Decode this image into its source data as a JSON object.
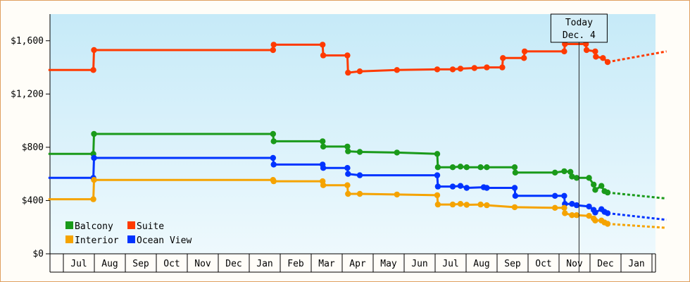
{
  "chart_data": {
    "type": "line",
    "title": "",
    "xlabel": "",
    "ylabel": "",
    "ylim": [
      0,
      1800
    ],
    "yticks": [
      0,
      400,
      800,
      1200,
      1600
    ],
    "ytick_labels": [
      "$0",
      "$400",
      "$800",
      "$1,200",
      "$1,600"
    ],
    "month_labels": [
      "Jul",
      "Aug",
      "Sep",
      "Oct",
      "Nov",
      "Dec",
      "Jan",
      "Feb",
      "Mar",
      "Apr",
      "May",
      "Jun",
      "Jul",
      "Aug",
      "Sep",
      "Oct",
      "Nov",
      "Dec",
      "Jan"
    ],
    "x_start_month": 0,
    "x_end_month": 19.9,
    "today": {
      "label_line1": "Today",
      "label_line2": "Dec. 4",
      "x": 17.1
    },
    "grid": "none",
    "background": "gradient light-blue",
    "legend": {
      "placement": "bottom-left",
      "entries": [
        {
          "name": "Balcony",
          "color": "#1a9a1a"
        },
        {
          "name": "Suite",
          "color": "#ff3a00"
        },
        {
          "name": "Interior",
          "color": "#f5a300"
        },
        {
          "name": "Ocean View",
          "color": "#0033ff"
        }
      ]
    },
    "series": [
      {
        "name": "Suite",
        "color": "#ff3a00",
        "points": [
          [
            -0.05,
            1380
          ],
          [
            1.4,
            1380
          ],
          [
            1.42,
            1530
          ],
          [
            7.2,
            1530
          ],
          [
            7.22,
            1570
          ],
          [
            8.8,
            1570
          ],
          [
            8.82,
            1490
          ],
          [
            9.6,
            1490
          ],
          [
            9.62,
            1360
          ],
          [
            10.0,
            1370
          ],
          [
            11.2,
            1380
          ],
          [
            12.5,
            1385
          ],
          [
            13.0,
            1385
          ],
          [
            13.25,
            1390
          ],
          [
            13.7,
            1395
          ],
          [
            14.1,
            1400
          ],
          [
            14.6,
            1400
          ],
          [
            14.62,
            1470
          ],
          [
            15.3,
            1470
          ],
          [
            15.32,
            1520
          ],
          [
            16.6,
            1520
          ],
          [
            16.62,
            1575
          ],
          [
            17.3,
            1575
          ],
          [
            17.32,
            1530
          ],
          [
            17.6,
            1520
          ],
          [
            17.62,
            1480
          ],
          [
            17.85,
            1470
          ],
          [
            18.0,
            1440
          ]
        ],
        "forecast": [
          [
            18.0,
            1440
          ],
          [
            19.9,
            1520
          ]
        ]
      },
      {
        "name": "Balcony",
        "color": "#1a9a1a",
        "points": [
          [
            -0.05,
            750
          ],
          [
            1.4,
            750
          ],
          [
            1.42,
            900
          ],
          [
            7.2,
            900
          ],
          [
            7.22,
            845
          ],
          [
            8.8,
            845
          ],
          [
            8.82,
            805
          ],
          [
            9.6,
            805
          ],
          [
            9.62,
            770
          ],
          [
            10.0,
            765
          ],
          [
            11.2,
            760
          ],
          [
            12.5,
            750
          ],
          [
            12.52,
            650
          ],
          [
            13.0,
            650
          ],
          [
            13.25,
            655
          ],
          [
            13.45,
            650
          ],
          [
            13.9,
            650
          ],
          [
            14.1,
            650
          ],
          [
            15.0,
            650
          ],
          [
            15.02,
            610
          ],
          [
            16.3,
            610
          ],
          [
            16.6,
            620
          ],
          [
            16.8,
            615
          ],
          [
            16.85,
            580
          ],
          [
            17.0,
            570
          ],
          [
            17.4,
            570
          ],
          [
            17.55,
            520
          ],
          [
            17.6,
            480
          ],
          [
            17.8,
            510
          ],
          [
            17.9,
            470
          ],
          [
            18.0,
            460
          ]
        ],
        "forecast": [
          [
            18.0,
            460
          ],
          [
            19.9,
            415
          ]
        ]
      },
      {
        "name": "Ocean View",
        "color": "#0033ff",
        "points": [
          [
            -0.05,
            570
          ],
          [
            1.4,
            570
          ],
          [
            1.42,
            720
          ],
          [
            7.2,
            720
          ],
          [
            7.22,
            670
          ],
          [
            8.8,
            670
          ],
          [
            8.82,
            645
          ],
          [
            9.6,
            645
          ],
          [
            9.62,
            600
          ],
          [
            10.0,
            590
          ],
          [
            12.5,
            590
          ],
          [
            12.52,
            505
          ],
          [
            13.0,
            505
          ],
          [
            13.25,
            510
          ],
          [
            13.45,
            495
          ],
          [
            14.0,
            500
          ],
          [
            14.1,
            495
          ],
          [
            15.0,
            495
          ],
          [
            15.02,
            435
          ],
          [
            16.3,
            435
          ],
          [
            16.6,
            435
          ],
          [
            16.62,
            375
          ],
          [
            16.85,
            375
          ],
          [
            17.0,
            365
          ],
          [
            17.4,
            355
          ],
          [
            17.55,
            330
          ],
          [
            17.6,
            310
          ],
          [
            17.8,
            335
          ],
          [
            17.9,
            315
          ],
          [
            18.0,
            305
          ]
        ],
        "forecast": [
          [
            18.0,
            305
          ],
          [
            19.9,
            255
          ]
        ]
      },
      {
        "name": "Interior",
        "color": "#f5a300",
        "points": [
          [
            -0.05,
            410
          ],
          [
            1.4,
            410
          ],
          [
            1.42,
            555
          ],
          [
            7.2,
            555
          ],
          [
            7.22,
            545
          ],
          [
            8.8,
            545
          ],
          [
            8.82,
            515
          ],
          [
            9.6,
            515
          ],
          [
            9.62,
            450
          ],
          [
            10.0,
            450
          ],
          [
            11.2,
            445
          ],
          [
            12.5,
            440
          ],
          [
            12.52,
            370
          ],
          [
            13.0,
            370
          ],
          [
            13.25,
            375
          ],
          [
            13.45,
            368
          ],
          [
            13.9,
            370
          ],
          [
            14.1,
            365
          ],
          [
            15.0,
            350
          ],
          [
            16.3,
            345
          ],
          [
            16.6,
            345
          ],
          [
            16.62,
            305
          ],
          [
            16.85,
            290
          ],
          [
            17.0,
            290
          ],
          [
            17.4,
            285
          ],
          [
            17.55,
            265
          ],
          [
            17.6,
            250
          ],
          [
            17.8,
            250
          ],
          [
            17.9,
            235
          ],
          [
            18.0,
            225
          ]
        ],
        "forecast": [
          [
            18.0,
            225
          ],
          [
            19.9,
            195
          ]
        ]
      }
    ]
  }
}
